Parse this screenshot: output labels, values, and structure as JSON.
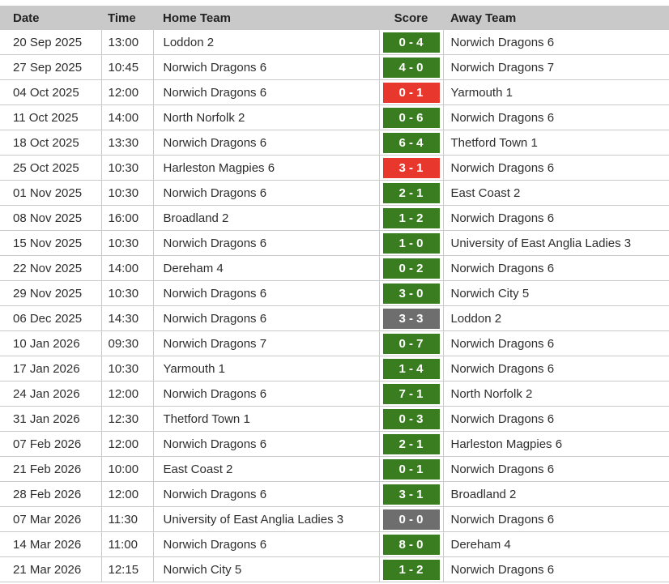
{
  "table": {
    "columns": [
      "Date",
      "Time",
      "Home Team",
      "Score",
      "Away Team"
    ],
    "rows": [
      {
        "date": "20 Sep 2025",
        "time": "13:00",
        "home": "Loddon 2",
        "score": "0 - 4",
        "result": "win",
        "away": "Norwich Dragons 6"
      },
      {
        "date": "27 Sep 2025",
        "time": "10:45",
        "home": "Norwich Dragons 6",
        "score": "4 - 0",
        "result": "win",
        "away": "Norwich Dragons 7"
      },
      {
        "date": "04 Oct 2025",
        "time": "12:00",
        "home": "Norwich Dragons 6",
        "score": "0 - 1",
        "result": "loss",
        "away": "Yarmouth 1"
      },
      {
        "date": "11 Oct 2025",
        "time": "14:00",
        "home": "North Norfolk 2",
        "score": "0 - 6",
        "result": "win",
        "away": "Norwich Dragons 6"
      },
      {
        "date": "18 Oct 2025",
        "time": "13:30",
        "home": "Norwich Dragons 6",
        "score": "6 - 4",
        "result": "win",
        "away": "Thetford Town 1"
      },
      {
        "date": "25 Oct 2025",
        "time": "10:30",
        "home": "Harleston Magpies 6",
        "score": "3 - 1",
        "result": "loss",
        "away": "Norwich Dragons 6"
      },
      {
        "date": "01 Nov 2025",
        "time": "10:30",
        "home": "Norwich Dragons 6",
        "score": "2 - 1",
        "result": "win",
        "away": "East Coast 2"
      },
      {
        "date": "08 Nov 2025",
        "time": "16:00",
        "home": "Broadland 2",
        "score": "1 - 2",
        "result": "win",
        "away": "Norwich Dragons 6"
      },
      {
        "date": "15 Nov 2025",
        "time": "10:30",
        "home": "Norwich Dragons 6",
        "score": "1 - 0",
        "result": "win",
        "away": "University of East Anglia Ladies 3"
      },
      {
        "date": "22 Nov 2025",
        "time": "14:00",
        "home": "Dereham 4",
        "score": "0 - 2",
        "result": "win",
        "away": "Norwich Dragons 6"
      },
      {
        "date": "29 Nov 2025",
        "time": "10:30",
        "home": "Norwich Dragons 6",
        "score": "3 - 0",
        "result": "win",
        "away": "Norwich City 5"
      },
      {
        "date": "06 Dec 2025",
        "time": "14:30",
        "home": "Norwich Dragons 6",
        "score": "3 - 3",
        "result": "draw",
        "away": "Loddon 2"
      },
      {
        "date": "10 Jan 2026",
        "time": "09:30",
        "home": "Norwich Dragons 7",
        "score": "0 - 7",
        "result": "win",
        "away": "Norwich Dragons 6"
      },
      {
        "date": "17 Jan 2026",
        "time": "10:30",
        "home": "Yarmouth 1",
        "score": "1 - 4",
        "result": "win",
        "away": "Norwich Dragons 6"
      },
      {
        "date": "24 Jan 2026",
        "time": "12:00",
        "home": "Norwich Dragons 6",
        "score": "7 - 1",
        "result": "win",
        "away": "North Norfolk 2"
      },
      {
        "date": "31 Jan 2026",
        "time": "12:30",
        "home": "Thetford Town 1",
        "score": "0 - 3",
        "result": "win",
        "away": "Norwich Dragons 6"
      },
      {
        "date": "07 Feb 2026",
        "time": "12:00",
        "home": "Norwich Dragons 6",
        "score": "2 - 1",
        "result": "win",
        "away": "Harleston Magpies 6"
      },
      {
        "date": "21 Feb 2026",
        "time": "10:00",
        "home": "East Coast 2",
        "score": "0 - 1",
        "result": "win",
        "away": "Norwich Dragons 6"
      },
      {
        "date": "28 Feb 2026",
        "time": "12:00",
        "home": "Norwich Dragons 6",
        "score": "3 - 1",
        "result": "win",
        "away": "Broadland 2"
      },
      {
        "date": "07 Mar 2026",
        "time": "11:30",
        "home": "University of East Anglia Ladies 3",
        "score": "0 - 0",
        "result": "draw",
        "away": "Norwich Dragons 6"
      },
      {
        "date": "14 Mar 2026",
        "time": "11:00",
        "home": "Norwich Dragons 6",
        "score": "8 - 0",
        "result": "win",
        "away": "Dereham 4"
      },
      {
        "date": "21 Mar 2026",
        "time": "12:15",
        "home": "Norwich City 5",
        "score": "1 - 2",
        "result": "win",
        "away": "Norwich Dragons 6"
      }
    ]
  },
  "colors": {
    "win": "#3a7d21",
    "loss": "#e8382d",
    "draw": "#6e6e6e",
    "header_bg": "#c9c9c9",
    "border": "#c9c9c9",
    "text": "#2e2e2e",
    "badge_text": "#ffffff"
  }
}
